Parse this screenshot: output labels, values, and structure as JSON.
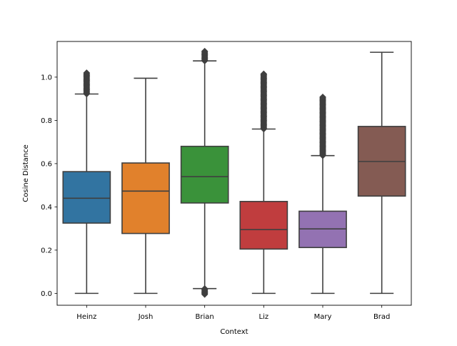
{
  "chart_data": {
    "type": "box",
    "title": "",
    "xlabel": "Context",
    "ylabel": "Cosine Distance",
    "ylim": [
      -0.055,
      1.165
    ],
    "yticks": [
      {
        "value": 0.0,
        "label": "0.0"
      },
      {
        "value": 0.2,
        "label": "0.2"
      },
      {
        "value": 0.4,
        "label": "0.4"
      },
      {
        "value": 0.6,
        "label": "0.6"
      },
      {
        "value": 0.8,
        "label": "0.8"
      },
      {
        "value": 1.0,
        "label": "1.0"
      }
    ],
    "grid": false,
    "categories": [
      "Heinz",
      "Josh",
      "Brian",
      "Liz",
      "Mary",
      "Brad"
    ],
    "boxes": [
      {
        "name": "Heinz",
        "color": "#3274a1",
        "whisker_low": 0.0,
        "q1": 0.325,
        "median": 0.44,
        "q3": 0.563,
        "whisker_high": 0.922,
        "outliers_high": [
          0.922,
          1.02
        ],
        "outliers_low": null
      },
      {
        "name": "Josh",
        "color": "#e1812c",
        "whisker_low": 0.0,
        "q1": 0.277,
        "median": 0.473,
        "q3": 0.603,
        "whisker_high": 0.995,
        "outliers_high": null,
        "outliers_low": null
      },
      {
        "name": "Brian",
        "color": "#3a923a",
        "whisker_low": 0.022,
        "q1": 0.418,
        "median": 0.54,
        "q3": 0.68,
        "whisker_high": 1.075,
        "outliers_high": [
          1.075,
          1.12
        ],
        "outliers_low": [
          -0.005,
          0.022
        ]
      },
      {
        "name": "Liz",
        "color": "#c03d3e",
        "whisker_low": 0.0,
        "q1": 0.205,
        "median": 0.295,
        "q3": 0.425,
        "whisker_high": 0.76,
        "outliers_high": [
          0.76,
          1.015
        ],
        "outliers_low": null
      },
      {
        "name": "Mary",
        "color": "#9372b2",
        "whisker_low": 0.0,
        "q1": 0.212,
        "median": 0.298,
        "q3": 0.38,
        "whisker_high": 0.637,
        "outliers_high": [
          0.637,
          0.908
        ],
        "outliers_low": null
      },
      {
        "name": "Brad",
        "color": "#845b53",
        "whisker_low": 0.0,
        "q1": 0.45,
        "median": 0.61,
        "q3": 0.772,
        "whisker_high": 1.115,
        "outliers_high": null,
        "outliers_low": null
      }
    ]
  }
}
